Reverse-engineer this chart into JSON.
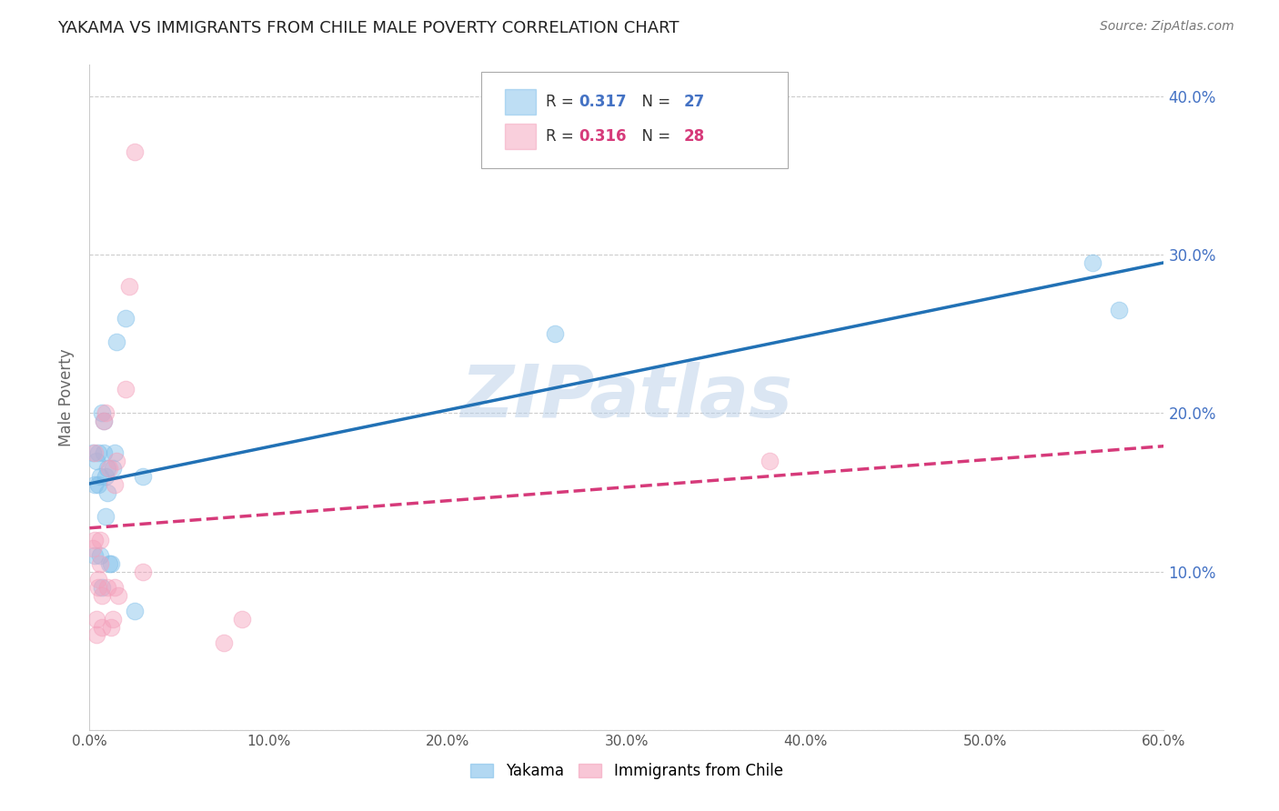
{
  "title": "YAKAMA VS IMMIGRANTS FROM CHILE MALE POVERTY CORRELATION CHART",
  "source": "Source: ZipAtlas.com",
  "ylabel": "Male Poverty",
  "x_min": 0.0,
  "x_max": 0.6,
  "y_min": 0.0,
  "y_max": 0.42,
  "x_ticks": [
    0.0,
    0.1,
    0.2,
    0.3,
    0.4,
    0.5,
    0.6
  ],
  "x_tick_labels": [
    "0.0%",
    "10.0%",
    "20.0%",
    "30.0%",
    "40.0%",
    "50.0%",
    "60.0%"
  ],
  "y_ticks": [
    0.0,
    0.1,
    0.2,
    0.3,
    0.4
  ],
  "y_tick_labels_right": [
    "",
    "10.0%",
    "20.0%",
    "30.0%",
    "40.0%"
  ],
  "color_blue": "#7fbfea",
  "color_pink": "#f4a0bb",
  "color_blue_line": "#2171b5",
  "color_pink_line": "#d63a7a",
  "color_axis_label": "#4472C4",
  "watermark": "ZIPatlas",
  "yakama_x": [
    0.002,
    0.003,
    0.003,
    0.004,
    0.005,
    0.005,
    0.006,
    0.006,
    0.007,
    0.007,
    0.008,
    0.008,
    0.009,
    0.009,
    0.01,
    0.01,
    0.011,
    0.012,
    0.013,
    0.014,
    0.015,
    0.02,
    0.025,
    0.03,
    0.26,
    0.56,
    0.575
  ],
  "yakama_y": [
    0.175,
    0.11,
    0.155,
    0.17,
    0.155,
    0.175,
    0.11,
    0.16,
    0.09,
    0.2,
    0.175,
    0.195,
    0.135,
    0.16,
    0.15,
    0.165,
    0.105,
    0.105,
    0.165,
    0.175,
    0.245,
    0.26,
    0.075,
    0.16,
    0.25,
    0.295,
    0.265
  ],
  "chile_x": [
    0.002,
    0.003,
    0.003,
    0.004,
    0.004,
    0.005,
    0.005,
    0.006,
    0.006,
    0.007,
    0.007,
    0.008,
    0.009,
    0.01,
    0.011,
    0.012,
    0.013,
    0.014,
    0.014,
    0.015,
    0.016,
    0.02,
    0.022,
    0.025,
    0.03,
    0.075,
    0.085,
    0.38
  ],
  "chile_y": [
    0.115,
    0.12,
    0.175,
    0.06,
    0.07,
    0.09,
    0.095,
    0.105,
    0.12,
    0.065,
    0.085,
    0.195,
    0.2,
    0.09,
    0.165,
    0.065,
    0.07,
    0.09,
    0.155,
    0.17,
    0.085,
    0.215,
    0.28,
    0.365,
    0.1,
    0.055,
    0.07,
    0.17
  ]
}
